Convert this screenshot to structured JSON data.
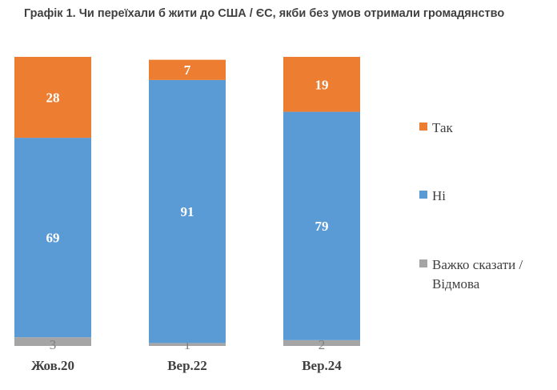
{
  "chart_data": {
    "type": "bar",
    "stacked": true,
    "title": "Графік 1. Чи переїхали б жити до США / ЄС, якби без умов отримали громадянство",
    "categories": [
      "Жов.20",
      "Вер.22",
      "Вер.24"
    ],
    "series": [
      {
        "name": "Важко сказати / Відмова",
        "color": "#a5a5a5",
        "values": [
          3,
          1,
          2
        ]
      },
      {
        "name": "Ні",
        "color": "#5b9bd5",
        "values": [
          69,
          91,
          79
        ]
      },
      {
        "name": "Так",
        "color": "#ed7d31",
        "values": [
          28,
          7,
          19
        ]
      }
    ],
    "ylim": [
      0,
      100
    ],
    "legend_position": "right",
    "grid": false
  }
}
